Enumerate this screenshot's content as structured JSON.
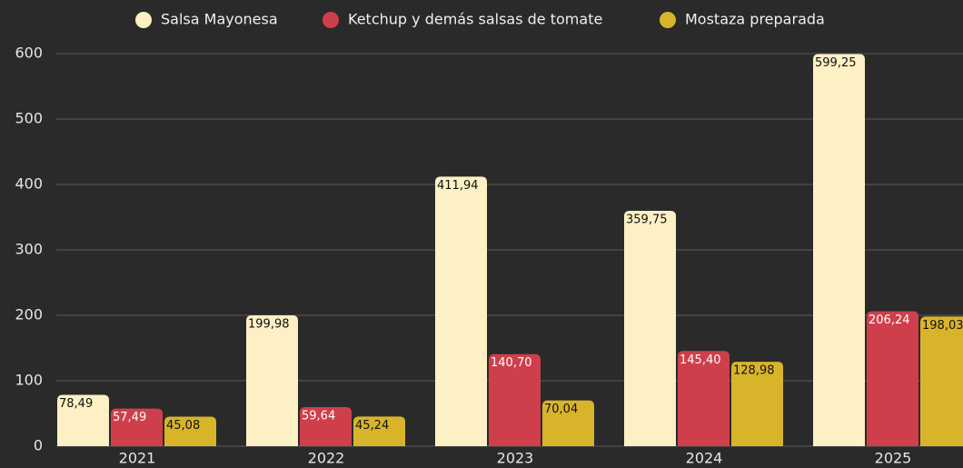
{
  "chart_data": {
    "type": "bar",
    "categories": [
      "2021",
      "2022",
      "2023",
      "2024",
      "2025"
    ],
    "series": [
      {
        "name": "Salsa Mayonesa",
        "color": "#fdf0c4",
        "values": [
          78.49,
          199.98,
          411.94,
          359.75,
          599.25
        ],
        "value_labels": [
          "78,49",
          "199,98",
          "411,94",
          "359,75",
          "599,25"
        ]
      },
      {
        "name": "Ketchup y demás salsas de tomate",
        "color": "#cf3f4b",
        "values": [
          57.49,
          59.64,
          140.7,
          145.4,
          206.24
        ],
        "value_labels": [
          "57,49",
          "59,64",
          "140,70",
          "145,40",
          "206,24"
        ]
      },
      {
        "name": "Mostaza preparada",
        "color": "#d8b42a",
        "values": [
          45.08,
          45.24,
          70.04,
          128.98,
          198.03
        ],
        "value_labels": [
          "45,08",
          "45,24",
          "70,04",
          "128,98",
          "198,03"
        ]
      }
    ],
    "ylim": [
      0,
      600
    ],
    "yticks": [
      0,
      100,
      200,
      300,
      400,
      500,
      600
    ],
    "grid": true,
    "legend": "top"
  }
}
